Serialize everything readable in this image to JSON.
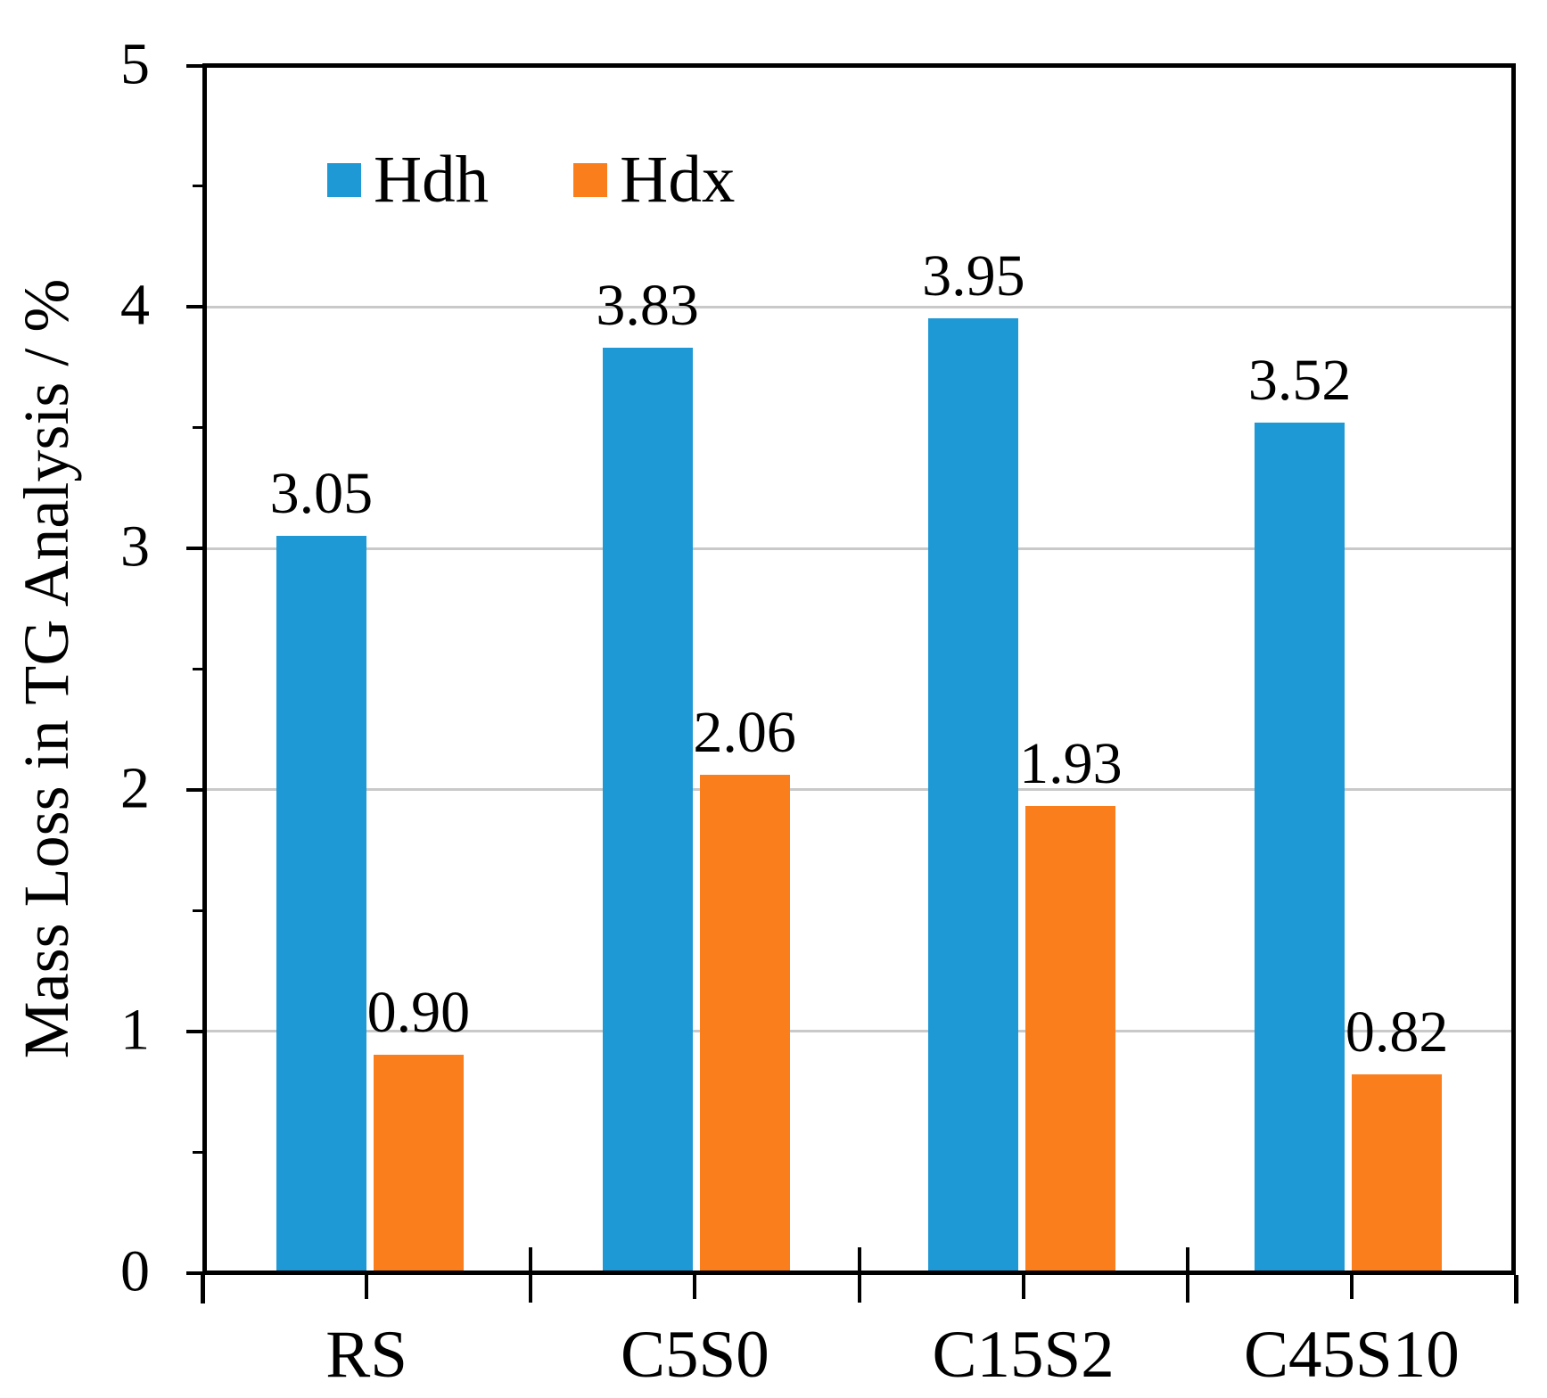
{
  "chart_data": {
    "type": "bar",
    "title": "",
    "xlabel": "",
    "ylabel": "Mass Loss in TG Analysis / %",
    "categories": [
      "RS",
      "C5S0",
      "C15S2",
      "C45S10"
    ],
    "series": [
      {
        "name": "Hdh",
        "color": "#1F99D5",
        "values": [
          3.05,
          3.83,
          3.95,
          3.52
        ],
        "data_labels": [
          "3.05",
          "3.83",
          "3.95",
          "3.52"
        ]
      },
      {
        "name": "Hdx",
        "color": "#FA7F1C",
        "values": [
          0.9,
          2.06,
          1.93,
          0.82
        ],
        "data_labels": [
          "0.90",
          "2.06",
          "1.93",
          "0.82"
        ]
      }
    ],
    "ylim": [
      0,
      5
    ],
    "y_major_ticks": [
      "0",
      "1",
      "2",
      "3",
      "4",
      "5"
    ],
    "y_minor_tick_interval": 0.5,
    "grid": "horizontal-major-only",
    "gridline_color": "#C9C9C9",
    "axis_color": "#000000",
    "legend_position": "inside-top-left"
  }
}
